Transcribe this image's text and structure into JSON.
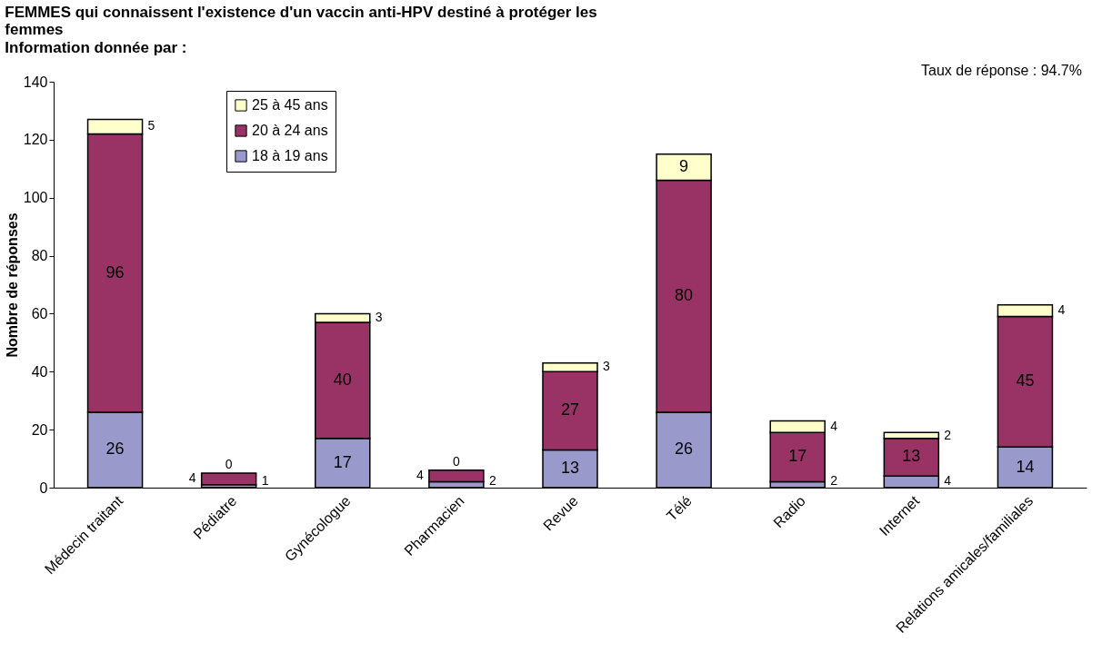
{
  "chart_data": {
    "type": "bar",
    "stacked": true,
    "title": "FEMMES qui connaissent l'existence d'un vaccin anti-HPV destiné à protéger les femmes",
    "subtitle": "Information donnée par :",
    "ylabel": "Nombre de réponses",
    "annotations": [
      "Taux de réponse : 94.7%"
    ],
    "categories": [
      "Médecin traitant",
      "Pédiatre",
      "Gynécologue",
      "Pharmacien",
      "Revue",
      "Télé",
      "Radio",
      "Internet",
      "Relations amicales/familiales"
    ],
    "series": [
      {
        "name": "18 à 19 ans",
        "color": "#9999cc",
        "values": [
          26,
          1,
          17,
          2,
          13,
          26,
          2,
          4,
          14
        ]
      },
      {
        "name": "20 à 24 ans",
        "color": "#993366",
        "values": [
          96,
          4,
          40,
          4,
          27,
          80,
          17,
          13,
          45
        ]
      },
      {
        "name": "25 à 45 ans",
        "color": "#ffffcc",
        "values": [
          5,
          0,
          3,
          0,
          3,
          9,
          4,
          2,
          4
        ]
      }
    ],
    "ylim": [
      0,
      140
    ],
    "yticks": [
      0,
      20,
      40,
      60,
      80,
      100,
      120,
      140
    ],
    "data_labels": true,
    "grid": false,
    "legend": "top left"
  }
}
